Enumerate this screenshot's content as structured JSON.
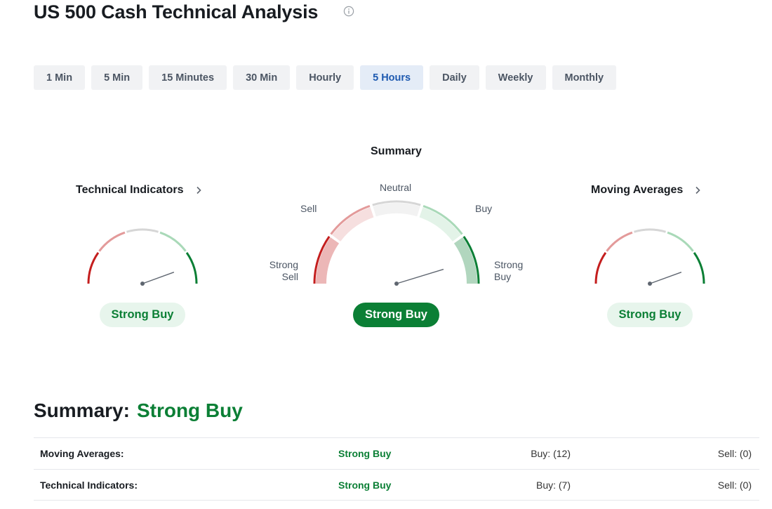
{
  "page": {
    "title": "US 500 Cash Technical Analysis"
  },
  "timeframes": [
    {
      "label": "1 Min",
      "active": false
    },
    {
      "label": "5 Min",
      "active": false
    },
    {
      "label": "15 Minutes",
      "active": false
    },
    {
      "label": "30 Min",
      "active": false
    },
    {
      "label": "Hourly",
      "active": false
    },
    {
      "label": "5 Hours",
      "active": true
    },
    {
      "label": "Daily",
      "active": false
    },
    {
      "label": "Weekly",
      "active": false
    },
    {
      "label": "Monthly",
      "active": false
    }
  ],
  "gauges": {
    "summary_title": "Summary",
    "technical": {
      "title": "Technical Indicators",
      "signal": "Strong Buy"
    },
    "summary": {
      "signal": "Strong Buy",
      "labels": {
        "neutral": "Neutral",
        "sell": "Sell",
        "buy": "Buy",
        "strong_sell_1": "Strong",
        "strong_sell_2": "Sell",
        "strong_buy_1": "Strong",
        "strong_buy_2": "Buy"
      }
    },
    "moving": {
      "title": "Moving Averages",
      "signal": "Strong Buy"
    }
  },
  "summary": {
    "label": "Summary:",
    "value": "Strong Buy",
    "rows": [
      {
        "name": "Moving Averages:",
        "signal": "Strong Buy",
        "buy": "Buy: (12)",
        "sell": "Sell: (0)"
      },
      {
        "name": "Technical Indicators:",
        "signal": "Strong Buy",
        "buy": "Buy: (7)",
        "sell": "Sell: (0)"
      }
    ]
  },
  "colors": {
    "strong_sell": "#c41e1e",
    "sell": "#e39a9a",
    "neutral": "#d6d6d6",
    "buy": "#a9d9b8",
    "strong_buy": "#0b7f35",
    "needle": "#5f6670"
  }
}
